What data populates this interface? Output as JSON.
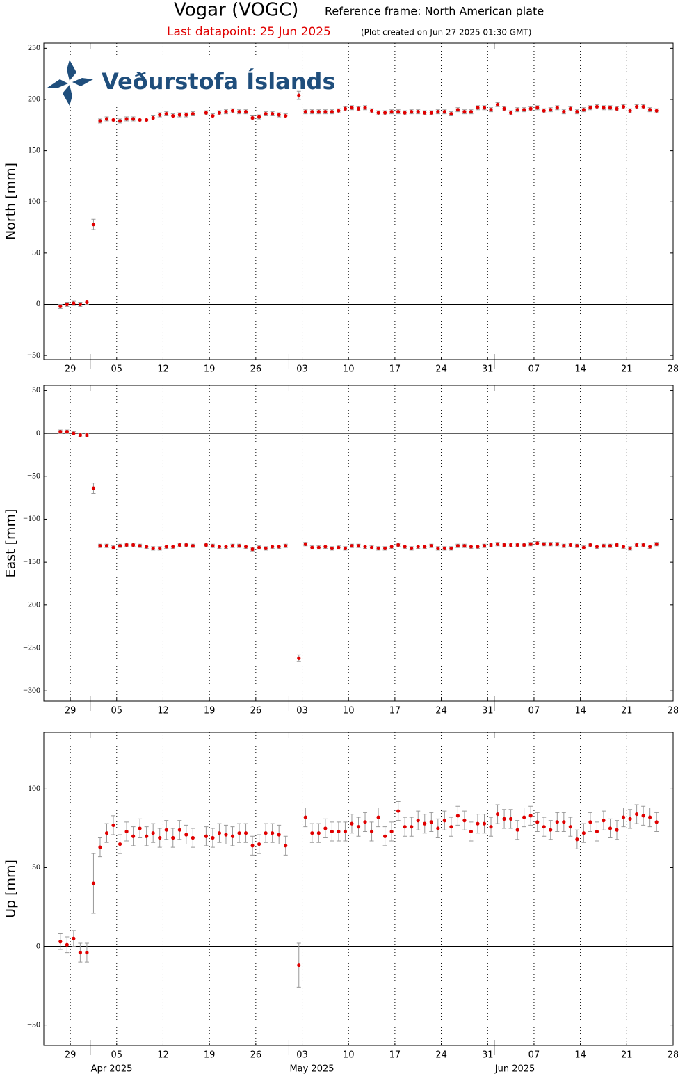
{
  "header": {
    "title": "Vogar (VOGC)",
    "reference": "Reference frame: North American plate",
    "last_datapoint": "Last datapoint: 25 Jun 2025",
    "created": "(Plot created on Jun 27 2025 01:30 GMT)",
    "logo_text": "Veðurstofa Íslands"
  },
  "chart_data": [
    {
      "type": "scatter",
      "ylabel": "North [mm]",
      "color": "#e00000",
      "error_color": "#999999",
      "grid": "x",
      "hlines": [
        0
      ],
      "xlim": [
        "2025-03-25",
        "2025-06-28"
      ],
      "ylim": [
        -54,
        255
      ],
      "yticks": [
        {
          "value": -50,
          "label": "−50"
        },
        0,
        50,
        100,
        150,
        200,
        250
      ],
      "xticks": [
        {
          "value": "2025-03-29",
          "label": "29"
        },
        {
          "value": "2025-04-05",
          "label": "05"
        },
        {
          "value": "2025-04-12",
          "label": "12"
        },
        {
          "value": "2025-04-19",
          "label": "19"
        },
        {
          "value": "2025-04-26",
          "label": "26"
        },
        {
          "value": "2025-05-03",
          "label": "03"
        },
        {
          "value": "2025-05-10",
          "label": "10"
        },
        {
          "value": "2025-05-17",
          "label": "17"
        },
        {
          "value": "2025-05-24",
          "label": "24"
        },
        {
          "value": "2025-05-31",
          "label": "31"
        },
        {
          "value": "2025-06-07",
          "label": "07"
        },
        {
          "value": "2025-06-14",
          "label": "14"
        },
        {
          "value": "2025-06-21",
          "label": "21"
        },
        {
          "value": "2025-06-28",
          "label": "28"
        }
      ],
      "month_ticks": [
        "2025-04-01",
        "2025-05-01",
        "2025-06-01"
      ],
      "x": [
        "2025-03-27",
        "2025-03-28",
        "2025-03-29",
        "2025-03-30",
        "2025-03-31",
        "2025-04-01",
        "2025-04-02",
        "2025-04-03",
        "2025-04-04",
        "2025-04-05",
        "2025-04-06",
        "2025-04-07",
        "2025-04-08",
        "2025-04-09",
        "2025-04-10",
        "2025-04-11",
        "2025-04-12",
        "2025-04-13",
        "2025-04-14",
        "2025-04-15",
        "2025-04-16",
        "2025-04-18",
        "2025-04-19",
        "2025-04-20",
        "2025-04-21",
        "2025-04-22",
        "2025-04-23",
        "2025-04-24",
        "2025-04-25",
        "2025-04-26",
        "2025-04-27",
        "2025-04-28",
        "2025-04-29",
        "2025-04-30",
        "2025-05-02",
        "2025-05-03",
        "2025-05-04",
        "2025-05-05",
        "2025-05-06",
        "2025-05-07",
        "2025-05-08",
        "2025-05-09",
        "2025-05-10",
        "2025-05-11",
        "2025-05-12",
        "2025-05-13",
        "2025-05-14",
        "2025-05-15",
        "2025-05-16",
        "2025-05-17",
        "2025-05-18",
        "2025-05-19",
        "2025-05-20",
        "2025-05-21",
        "2025-05-22",
        "2025-05-23",
        "2025-05-24",
        "2025-05-25",
        "2025-05-26",
        "2025-05-27",
        "2025-05-28",
        "2025-05-29",
        "2025-05-30",
        "2025-05-31",
        "2025-06-01",
        "2025-06-02",
        "2025-06-03",
        "2025-06-04",
        "2025-06-05",
        "2025-06-06",
        "2025-06-07",
        "2025-06-08",
        "2025-06-09",
        "2025-06-10",
        "2025-06-11",
        "2025-06-12",
        "2025-06-13",
        "2025-06-14",
        "2025-06-15",
        "2025-06-16",
        "2025-06-17",
        "2025-06-18",
        "2025-06-19",
        "2025-06-20",
        "2025-06-21",
        "2025-06-22",
        "2025-06-23",
        "2025-06-24",
        "2025-06-25"
      ],
      "values": [
        -2,
        0,
        1,
        0,
        2,
        78,
        179,
        181,
        180,
        179,
        181,
        181,
        180,
        180,
        182,
        185,
        186,
        184,
        185,
        185,
        186,
        187,
        184,
        187,
        188,
        189,
        188,
        188,
        182,
        183,
        186,
        186,
        185,
        184,
        204,
        188,
        188,
        188,
        188,
        188,
        189,
        191,
        192,
        191,
        192,
        189,
        187,
        187,
        188,
        188,
        187,
        188,
        188,
        187,
        187,
        188,
        188,
        186,
        190,
        188,
        188,
        192,
        192,
        190,
        195,
        191,
        187,
        190,
        190,
        191,
        192,
        189,
        190,
        192,
        188,
        191,
        188,
        190,
        192,
        193,
        192,
        192,
        191,
        193,
        189,
        193,
        193,
        190,
        189
      ],
      "errors": [
        2,
        2,
        2,
        2,
        2,
        5,
        2,
        2,
        2,
        2,
        2,
        2,
        2,
        2,
        2,
        2,
        2,
        2,
        2,
        2,
        2,
        2,
        2,
        2,
        2,
        2,
        2,
        2,
        2,
        2,
        2,
        2,
        2,
        2,
        4,
        2,
        2,
        2,
        2,
        2,
        2,
        2,
        2,
        2,
        2,
        2,
        2,
        2,
        2,
        2,
        2,
        2,
        2,
        2,
        2,
        2,
        2,
        2,
        2,
        2,
        2,
        2,
        2,
        2,
        2,
        2,
        2,
        2,
        2,
        2,
        2,
        2,
        2,
        2,
        2,
        2,
        2,
        2,
        2,
        2,
        2,
        2,
        2,
        2,
        2,
        2,
        2,
        2,
        2
      ]
    },
    {
      "type": "scatter",
      "ylabel": "East [mm]",
      "color": "#e00000",
      "error_color": "#999999",
      "grid": "x",
      "hlines": [
        0
      ],
      "xlim": [
        "2025-03-25",
        "2025-06-28"
      ],
      "ylim": [
        -312,
        56
      ],
      "yticks": [
        {
          "value": -300,
          "label": "−300"
        },
        {
          "value": -250,
          "label": "−250"
        },
        {
          "value": -200,
          "label": "−200"
        },
        {
          "value": -150,
          "label": "−150"
        },
        {
          "value": -100,
          "label": "−100"
        },
        {
          "value": -50,
          "label": "−50"
        },
        0,
        50
      ],
      "xticks": [
        {
          "value": "2025-03-29",
          "label": "29"
        },
        {
          "value": "2025-04-05",
          "label": "05"
        },
        {
          "value": "2025-04-12",
          "label": "12"
        },
        {
          "value": "2025-04-19",
          "label": "19"
        },
        {
          "value": "2025-04-26",
          "label": "26"
        },
        {
          "value": "2025-05-03",
          "label": "03"
        },
        {
          "value": "2025-05-10",
          "label": "10"
        },
        {
          "value": "2025-05-17",
          "label": "17"
        },
        {
          "value": "2025-05-24",
          "label": "24"
        },
        {
          "value": "2025-05-31",
          "label": "31"
        },
        {
          "value": "2025-06-07",
          "label": "07"
        },
        {
          "value": "2025-06-14",
          "label": "14"
        },
        {
          "value": "2025-06-21",
          "label": "21"
        },
        {
          "value": "2025-06-28",
          "label": "28"
        }
      ],
      "month_ticks": [
        "2025-04-01",
        "2025-05-01",
        "2025-06-01"
      ],
      "x": [
        "2025-03-27",
        "2025-03-28",
        "2025-03-29",
        "2025-03-30",
        "2025-03-31",
        "2025-04-01",
        "2025-04-02",
        "2025-04-03",
        "2025-04-04",
        "2025-04-05",
        "2025-04-06",
        "2025-04-07",
        "2025-04-08",
        "2025-04-09",
        "2025-04-10",
        "2025-04-11",
        "2025-04-12",
        "2025-04-13",
        "2025-04-14",
        "2025-04-15",
        "2025-04-16",
        "2025-04-18",
        "2025-04-19",
        "2025-04-20",
        "2025-04-21",
        "2025-04-22",
        "2025-04-23",
        "2025-04-24",
        "2025-04-25",
        "2025-04-26",
        "2025-04-27",
        "2025-04-28",
        "2025-04-29",
        "2025-04-30",
        "2025-05-02",
        "2025-05-03",
        "2025-05-04",
        "2025-05-05",
        "2025-05-06",
        "2025-05-07",
        "2025-05-08",
        "2025-05-09",
        "2025-05-10",
        "2025-05-11",
        "2025-05-12",
        "2025-05-13",
        "2025-05-14",
        "2025-05-15",
        "2025-05-16",
        "2025-05-17",
        "2025-05-18",
        "2025-05-19",
        "2025-05-20",
        "2025-05-21",
        "2025-05-22",
        "2025-05-23",
        "2025-05-24",
        "2025-05-25",
        "2025-05-26",
        "2025-05-27",
        "2025-05-28",
        "2025-05-29",
        "2025-05-30",
        "2025-05-31",
        "2025-06-01",
        "2025-06-02",
        "2025-06-03",
        "2025-06-04",
        "2025-06-05",
        "2025-06-06",
        "2025-06-07",
        "2025-06-08",
        "2025-06-09",
        "2025-06-10",
        "2025-06-11",
        "2025-06-12",
        "2025-06-13",
        "2025-06-14",
        "2025-06-15",
        "2025-06-16",
        "2025-06-17",
        "2025-06-18",
        "2025-06-19",
        "2025-06-20",
        "2025-06-21",
        "2025-06-22",
        "2025-06-23",
        "2025-06-24",
        "2025-06-25"
      ],
      "values": [
        2,
        2,
        0,
        -2,
        -2,
        -64,
        -131,
        -131,
        -133,
        -131,
        -130,
        -130,
        -131,
        -132,
        -134,
        -134,
        -132,
        -132,
        -130,
        -130,
        -131,
        -130,
        -131,
        -132,
        -132,
        -131,
        -131,
        -132,
        -135,
        -133,
        -134,
        -132,
        -132,
        -131,
        -262,
        -129,
        -133,
        -133,
        -132,
        -134,
        -133,
        -134,
        -131,
        -131,
        -132,
        -133,
        -134,
        -134,
        -132,
        -130,
        -132,
        -134,
        -132,
        -132,
        -131,
        -134,
        -134,
        -134,
        -131,
        -131,
        -132,
        -132,
        -131,
        -130,
        -129,
        -130,
        -130,
        -130,
        -130,
        -129,
        -128,
        -129,
        -129,
        -129,
        -131,
        -130,
        -131,
        -133,
        -130,
        -132,
        -131,
        -131,
        -130,
        -132,
        -134,
        -130,
        -130,
        -132,
        -129
      ],
      "errors": [
        2,
        2,
        2,
        2,
        2,
        6,
        2,
        2,
        2,
        2,
        2,
        2,
        2,
        2,
        2,
        2,
        2,
        2,
        2,
        2,
        2,
        2,
        2,
        2,
        2,
        2,
        2,
        2,
        2,
        2,
        2,
        2,
        2,
        2,
        4,
        2,
        2,
        2,
        2,
        2,
        2,
        2,
        2,
        2,
        2,
        2,
        2,
        2,
        2,
        2,
        2,
        2,
        2,
        2,
        2,
        2,
        2,
        2,
        2,
        2,
        2,
        2,
        2,
        2,
        2,
        2,
        2,
        2,
        2,
        2,
        2,
        2,
        2,
        2,
        2,
        2,
        2,
        2,
        2,
        2,
        2,
        2,
        2,
        2,
        2,
        2,
        2,
        2,
        2
      ]
    },
    {
      "type": "scatter",
      "ylabel": "Up [mm]",
      "color": "#e00000",
      "error_color": "#999999",
      "grid": "x",
      "hlines": [
        0
      ],
      "xlim": [
        "2025-03-25",
        "2025-06-28"
      ],
      "ylim": [
        -63,
        136
      ],
      "yticks": [
        {
          "value": -50,
          "label": "−50"
        },
        0,
        50,
        100
      ],
      "xticks": [
        {
          "value": "2025-03-29",
          "label": "29"
        },
        {
          "value": "2025-04-05",
          "label": "05"
        },
        {
          "value": "2025-04-12",
          "label": "12"
        },
        {
          "value": "2025-04-19",
          "label": "19"
        },
        {
          "value": "2025-04-26",
          "label": "26"
        },
        {
          "value": "2025-05-03",
          "label": "03"
        },
        {
          "value": "2025-05-10",
          "label": "10"
        },
        {
          "value": "2025-05-17",
          "label": "17"
        },
        {
          "value": "2025-05-24",
          "label": "24"
        },
        {
          "value": "2025-05-31",
          "label": "31"
        },
        {
          "value": "2025-06-07",
          "label": "07"
        },
        {
          "value": "2025-06-14",
          "label": "14"
        },
        {
          "value": "2025-06-21",
          "label": "21"
        },
        {
          "value": "2025-06-28",
          "label": "28"
        }
      ],
      "month_ticks": [
        {
          "value": "2025-04-01",
          "label": "Apr 2025"
        },
        {
          "value": "2025-05-01",
          "label": "May 2025"
        },
        {
          "value": "2025-06-01",
          "label": "Jun 2025"
        }
      ],
      "x": [
        "2025-03-27",
        "2025-03-28",
        "2025-03-29",
        "2025-03-30",
        "2025-03-31",
        "2025-04-01",
        "2025-04-02",
        "2025-04-03",
        "2025-04-04",
        "2025-04-05",
        "2025-04-06",
        "2025-04-07",
        "2025-04-08",
        "2025-04-09",
        "2025-04-10",
        "2025-04-11",
        "2025-04-12",
        "2025-04-13",
        "2025-04-14",
        "2025-04-15",
        "2025-04-16",
        "2025-04-18",
        "2025-04-19",
        "2025-04-20",
        "2025-04-21",
        "2025-04-22",
        "2025-04-23",
        "2025-04-24",
        "2025-04-25",
        "2025-04-26",
        "2025-04-27",
        "2025-04-28",
        "2025-04-29",
        "2025-04-30",
        "2025-05-02",
        "2025-05-03",
        "2025-05-04",
        "2025-05-05",
        "2025-05-06",
        "2025-05-07",
        "2025-05-08",
        "2025-05-09",
        "2025-05-10",
        "2025-05-11",
        "2025-05-12",
        "2025-05-13",
        "2025-05-14",
        "2025-05-15",
        "2025-05-16",
        "2025-05-17",
        "2025-05-18",
        "2025-05-19",
        "2025-05-20",
        "2025-05-21",
        "2025-05-22",
        "2025-05-23",
        "2025-05-24",
        "2025-05-25",
        "2025-05-26",
        "2025-05-27",
        "2025-05-28",
        "2025-05-29",
        "2025-05-30",
        "2025-05-31",
        "2025-06-01",
        "2025-06-02",
        "2025-06-03",
        "2025-06-04",
        "2025-06-05",
        "2025-06-06",
        "2025-06-07",
        "2025-06-08",
        "2025-06-09",
        "2025-06-10",
        "2025-06-11",
        "2025-06-12",
        "2025-06-13",
        "2025-06-14",
        "2025-06-15",
        "2025-06-16",
        "2025-06-17",
        "2025-06-18",
        "2025-06-19",
        "2025-06-20",
        "2025-06-21",
        "2025-06-22",
        "2025-06-23",
        "2025-06-24",
        "2025-06-25"
      ],
      "values": [
        3,
        1,
        5,
        -4,
        -4,
        40,
        63,
        72,
        77,
        65,
        73,
        70,
        75,
        70,
        72,
        69,
        74,
        69,
        74,
        71,
        69,
        70,
        69,
        72,
        71,
        70,
        72,
        72,
        64,
        65,
        72,
        72,
        71,
        64,
        -12,
        82,
        72,
        72,
        75,
        73,
        73,
        73,
        78,
        76,
        79,
        73,
        82,
        70,
        73,
        86,
        76,
        76,
        80,
        78,
        79,
        75,
        80,
        76,
        83,
        80,
        73,
        78,
        78,
        76,
        84,
        81,
        81,
        74,
        82,
        83,
        79,
        76,
        74,
        79,
        79,
        76,
        68,
        72,
        79,
        73,
        80,
        75,
        74,
        82,
        81,
        84,
        83,
        82,
        79
      ],
      "errors": [
        5,
        5,
        5,
        6,
        6,
        19,
        6,
        6,
        6,
        6,
        6,
        6,
        6,
        6,
        6,
        6,
        6,
        6,
        6,
        6,
        6,
        6,
        6,
        6,
        6,
        6,
        6,
        6,
        6,
        6,
        6,
        6,
        6,
        6,
        14,
        6,
        6,
        6,
        6,
        6,
        6,
        6,
        6,
        6,
        6,
        6,
        6,
        6,
        6,
        6,
        6,
        6,
        6,
        6,
        6,
        6,
        6,
        6,
        6,
        6,
        6,
        6,
        6,
        6,
        6,
        6,
        6,
        6,
        6,
        6,
        6,
        6,
        6,
        6,
        6,
        6,
        6,
        6,
        6,
        6,
        6,
        6,
        6,
        6,
        6,
        6,
        6,
        6,
        6
      ]
    }
  ]
}
